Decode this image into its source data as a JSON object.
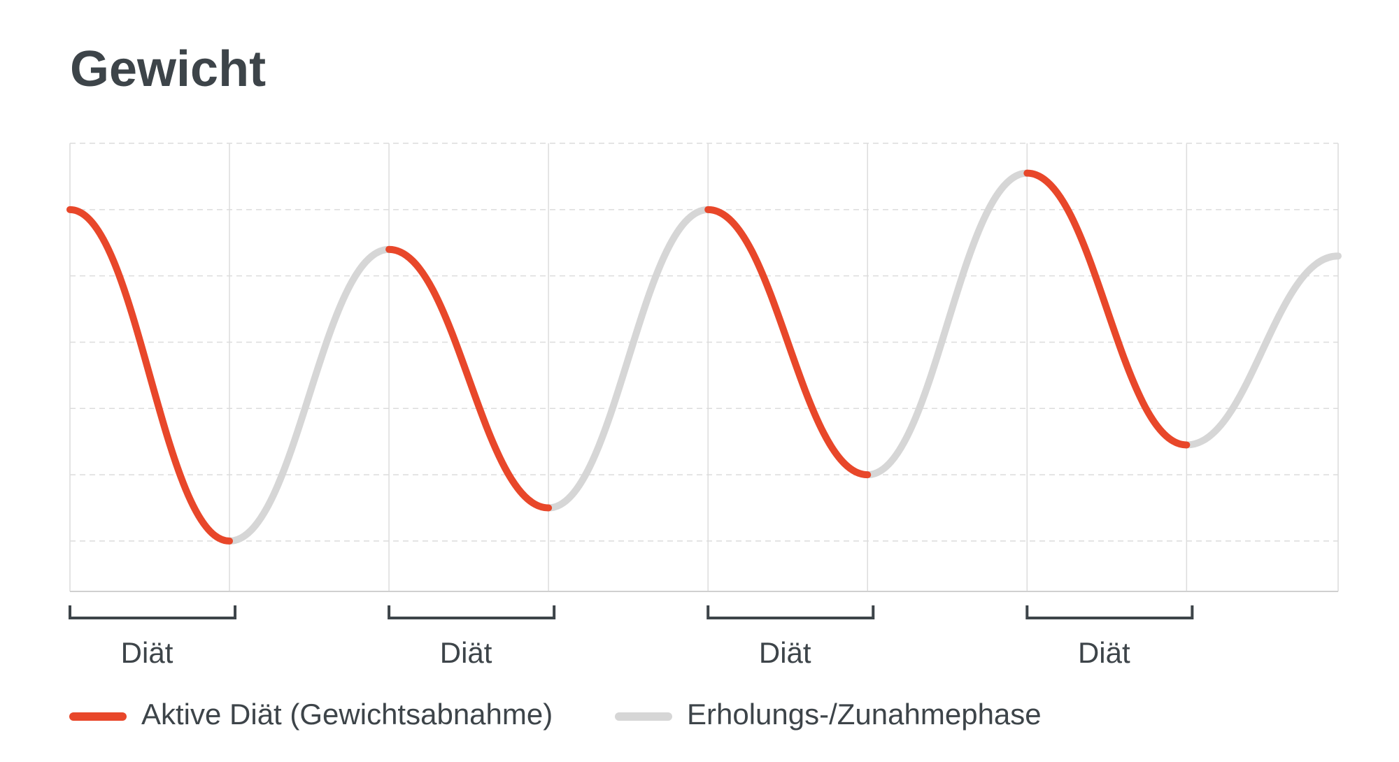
{
  "chart_data": {
    "type": "line",
    "title": "Gewicht",
    "x": [
      0,
      1,
      1,
      2,
      2,
      3,
      3,
      4,
      4,
      5,
      5,
      6,
      6,
      7,
      7,
      7.95
    ],
    "xlim": [
      0,
      7.95
    ],
    "ylim": [
      0.24,
      7
    ],
    "yticks": [
      1,
      2,
      3,
      4,
      5,
      6,
      7
    ],
    "grid": true,
    "legend": "bottom-left",
    "series": [
      {
        "name": "Aktive Diät (Gewichtsabnahme)",
        "color": "#e8472a",
        "values": [
          6,
          1,
          null,
          null,
          5.4,
          1.5,
          null,
          null,
          6,
          2,
          null,
          null,
          6.55,
          2.45,
          null,
          null
        ]
      },
      {
        "name": "Erholungs-/Zunahmephase",
        "color": "#d6d6d6",
        "values": [
          null,
          null,
          1,
          5.4,
          null,
          null,
          1.5,
          6,
          null,
          null,
          2,
          6.55,
          null,
          null,
          2.45,
          5.3
        ]
      }
    ],
    "annotations": [
      {
        "text": "Diät",
        "x": [
          0,
          1
        ]
      },
      {
        "text": "Diät",
        "x": [
          2,
          3
        ]
      },
      {
        "text": "Diät",
        "x": [
          4,
          5
        ]
      },
      {
        "text": "Diät",
        "x": [
          6,
          7
        ]
      }
    ]
  }
}
